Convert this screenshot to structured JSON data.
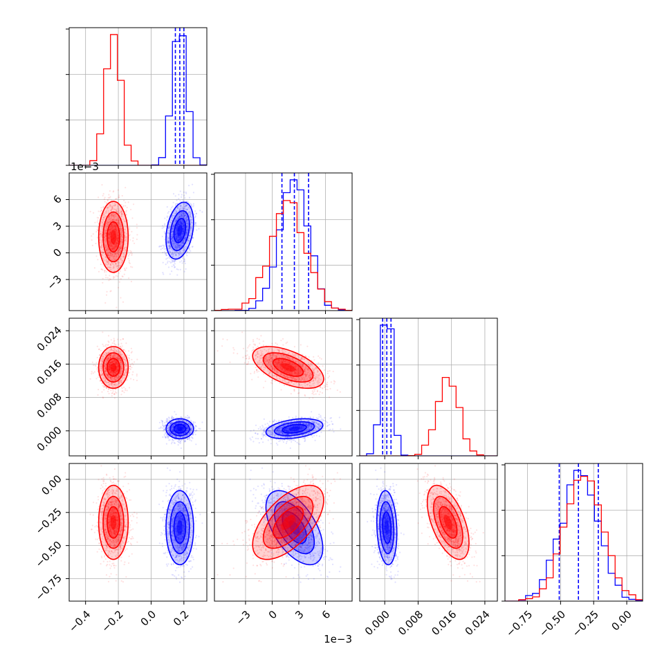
{
  "chart_data": {
    "type": "corner",
    "n_params": 4,
    "colors": {
      "series_a": "#0000ff",
      "series_b": "#ff0000"
    },
    "params": [
      {
        "index": 0,
        "range": [
          -0.5,
          0.34
        ],
        "ticks": [
          -0.4,
          -0.2,
          0.0,
          0.2
        ],
        "tick_labels": [
          "−0.4",
          "−0.2",
          "0.0",
          "0.2"
        ]
      },
      {
        "index": 1,
        "range": [
          -0.0065,
          0.009
        ],
        "ticks": [
          -0.003,
          0.0,
          0.003,
          0.006
        ],
        "tick_labels": [
          "−3",
          "0",
          "3",
          "6"
        ],
        "offset_label": "1e−3"
      },
      {
        "index": 2,
        "range": [
          -0.006,
          0.027
        ],
        "ticks": [
          0.0,
          0.008,
          0.016,
          0.024
        ],
        "tick_labels": [
          "0.000",
          "0.008",
          "0.016",
          "0.024"
        ]
      },
      {
        "index": 3,
        "range": [
          -0.92,
          0.12
        ],
        "ticks": [
          -0.75,
          -0.5,
          -0.25,
          0.0
        ],
        "tick_labels": [
          "−0.75",
          "−0.50",
          "−0.25",
          "0.00"
        ]
      }
    ],
    "series": [
      {
        "color": "#0000ff",
        "mean": [
          0.175,
          0.0025,
          0.0005,
          -0.365
        ],
        "std": [
          0.042,
          0.0016,
          0.0012,
          0.14
        ],
        "correlations": {
          "0-1": 0.3,
          "0-2": 0.0,
          "0-3": 0.0,
          "1-2": 0.35,
          "1-3": -0.55,
          "2-3": -0.15
        },
        "quantiles": [
          [
            0.148,
            0.175,
            0.2
          ],
          [
            0.0011,
            0.0025,
            0.0041
          ],
          [
            -0.0005,
            0.0005,
            0.0015
          ],
          [
            -0.51,
            -0.365,
            -0.215
          ]
        ]
      },
      {
        "color": "#ff0000",
        "mean": [
          -0.23,
          0.0018,
          0.0152,
          -0.325
        ],
        "std": [
          0.045,
          0.002,
          0.0025,
          0.14
        ],
        "correlations": {
          "0-1": 0.0,
          "0-2": 0.0,
          "0-3": 0.0,
          "1-2": -0.55,
          "1-3": 0.6,
          "2-3": -0.55
        },
        "quantiles": null
      }
    ]
  }
}
